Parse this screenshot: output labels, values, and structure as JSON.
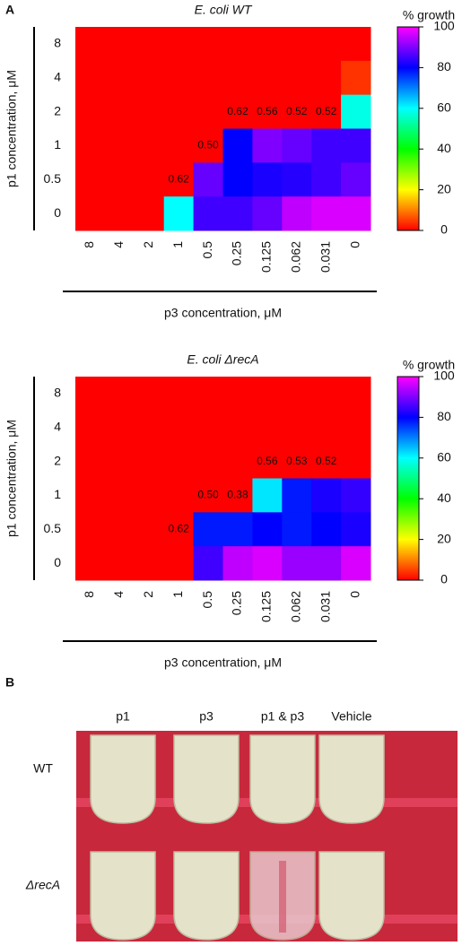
{
  "panel_labels": [
    "A",
    "B"
  ],
  "chart_data": [
    {
      "type": "heatmap",
      "title": "E. coli WT",
      "ylabel": "p1 concentration, μM",
      "xlabel": "p3 concentration, μM",
      "x_categories": [
        "8",
        "4",
        "2",
        "1",
        "0.5",
        "0.25",
        "0.125",
        "0.062",
        "0.031",
        "0"
      ],
      "y_categories": [
        "8",
        "4",
        "2",
        "1",
        "0.5",
        "0"
      ],
      "values": [
        [
          0,
          0,
          0,
          0,
          0,
          0,
          0,
          0,
          0,
          0
        ],
        [
          0,
          0,
          0,
          0,
          0,
          0,
          0,
          0,
          0,
          4
        ],
        [
          0,
          0,
          0,
          0,
          0,
          0,
          0,
          0,
          0,
          58
        ],
        [
          0,
          0,
          0,
          0,
          0,
          80,
          90,
          88,
          85,
          85
        ],
        [
          0,
          0,
          0,
          0,
          88,
          80,
          82,
          83,
          85,
          88
        ],
        [
          0,
          0,
          0,
          60,
          85,
          85,
          88,
          95,
          97,
          97
        ]
      ],
      "annotations": [
        [
          null,
          null,
          null,
          null,
          null,
          null,
          null,
          null,
          null,
          null
        ],
        [
          null,
          null,
          null,
          null,
          null,
          null,
          null,
          null,
          null,
          null
        ],
        [
          null,
          null,
          null,
          null,
          null,
          "0.62",
          "0.56",
          "0.52",
          "0.52",
          null
        ],
        [
          null,
          null,
          null,
          null,
          "0.50",
          null,
          null,
          null,
          null,
          null
        ],
        [
          null,
          null,
          null,
          "0.62",
          null,
          null,
          null,
          null,
          null,
          null
        ],
        [
          null,
          null,
          null,
          null,
          null,
          null,
          null,
          null,
          null,
          null
        ]
      ],
      "colorbar_title": "% growth",
      "zlim": [
        0,
        100
      ],
      "zticks": [
        0,
        20,
        40,
        60,
        80,
        100
      ]
    },
    {
      "type": "heatmap",
      "title": "E. coli ΔrecA",
      "ylabel": "p1 concentration, μM",
      "xlabel": "p3 concentration, μM",
      "x_categories": [
        "8",
        "4",
        "2",
        "1",
        "0.5",
        "0.25",
        "0.125",
        "0.062",
        "0.031",
        "0"
      ],
      "y_categories": [
        "8",
        "4",
        "2",
        "1",
        "0.5",
        "0"
      ],
      "values": [
        [
          0,
          0,
          0,
          0,
          0,
          0,
          0,
          0,
          0,
          0
        ],
        [
          0,
          0,
          0,
          0,
          0,
          0,
          0,
          0,
          0,
          0
        ],
        [
          0,
          0,
          0,
          0,
          0,
          0,
          0,
          0,
          0,
          0
        ],
        [
          0,
          0,
          0,
          0,
          0,
          0,
          62,
          78,
          82,
          84
        ],
        [
          0,
          0,
          0,
          0,
          78,
          78,
          80,
          78,
          80,
          82
        ],
        [
          0,
          0,
          0,
          0,
          85,
          95,
          97,
          92,
          92,
          97
        ]
      ],
      "annotations": [
        [
          null,
          null,
          null,
          null,
          null,
          null,
          null,
          null,
          null,
          null
        ],
        [
          null,
          null,
          null,
          null,
          null,
          null,
          null,
          null,
          null,
          null
        ],
        [
          null,
          null,
          null,
          null,
          null,
          null,
          "0.56",
          "0.53",
          "0.52",
          null
        ],
        [
          null,
          null,
          null,
          null,
          "0.50",
          "0.38",
          null,
          null,
          null,
          null
        ],
        [
          null,
          null,
          null,
          "0.62",
          null,
          null,
          null,
          null,
          null,
          null
        ],
        [
          null,
          null,
          null,
          null,
          null,
          null,
          null,
          null,
          null,
          null
        ]
      ],
      "colorbar_title": "% growth",
      "zlim": [
        0,
        100
      ],
      "zticks": [
        0,
        20,
        40,
        60,
        80,
        100
      ]
    }
  ],
  "photo": {
    "columns": [
      "p1",
      "p3",
      "p1 & p3",
      "Vehicle"
    ],
    "rows": [
      "WT",
      "ΔrecA"
    ]
  }
}
